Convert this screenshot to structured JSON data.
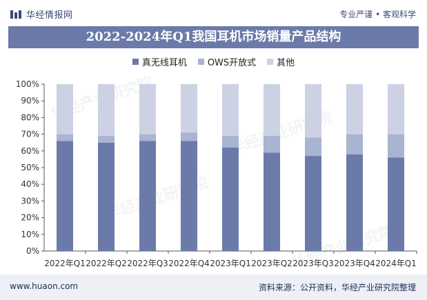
{
  "header": {
    "brand_name": "华经情报网",
    "slogan": "专业严谨 • 客观科学"
  },
  "footer": {
    "website": "www.huaon.com",
    "source": "资料来源：公开资料，华经产业研究院整理"
  },
  "watermark": {
    "text": "华经产业研究院"
  },
  "colors": {
    "title_bar": "#6b7aa8",
    "series_1": "#6b7aa8",
    "series_2": "#a9b3d2",
    "series_3": "#ccd1e4",
    "axis_text": "#333333"
  },
  "chart_data": {
    "type": "bar",
    "stacked": true,
    "title": "2022-2024年Q1我国耳机市场销量产品结构",
    "categories": [
      "2022年Q1",
      "2022年Q2",
      "2022年Q3",
      "2022年Q4",
      "2023年Q1",
      "2023年Q2",
      "2023年Q3",
      "2023年Q4",
      "2024年Q1"
    ],
    "series": [
      {
        "name": "真无线耳机",
        "values": [
          66,
          65,
          66,
          66,
          62,
          59,
          57,
          58,
          56
        ]
      },
      {
        "name": "OWS开放式",
        "values": [
          4,
          4,
          4,
          5,
          7,
          10,
          11,
          12,
          14
        ]
      },
      {
        "name": "其他",
        "values": [
          30,
          31,
          30,
          29,
          31,
          31,
          32,
          30,
          30
        ]
      }
    ],
    "ylim": [
      0,
      100
    ],
    "yticks": [
      "0%",
      "10%",
      "20%",
      "30%",
      "40%",
      "50%",
      "60%",
      "70%",
      "80%",
      "90%",
      "100%"
    ],
    "xlabel": "",
    "ylabel": "",
    "grid": false,
    "legend_position": "top"
  }
}
